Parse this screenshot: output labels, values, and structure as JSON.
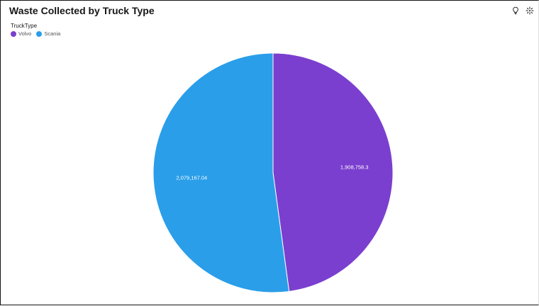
{
  "header": {
    "title": "Waste Collected by Truck Type"
  },
  "toolbar": {
    "icons": [
      "lightbulb-icon",
      "sparkle-icon"
    ]
  },
  "legend": {
    "title": "TruckType",
    "items": [
      {
        "label": "Volvo",
        "color": "#7b3fcf"
      },
      {
        "label": "Scania",
        "color": "#2a9ee9"
      }
    ]
  },
  "chart_data": {
    "type": "pie",
    "title": "Waste Collected by Truck Type",
    "legend_title": "TruckType",
    "legend_position": "top-left",
    "slices": [
      {
        "label": "Volvo",
        "value": 1908758.3,
        "display": "1,908,758.3",
        "color": "#7b3fcf"
      },
      {
        "label": "Scania",
        "value": 2079167.04,
        "display": "2,079,167.04",
        "color": "#2a9ee9"
      }
    ]
  }
}
